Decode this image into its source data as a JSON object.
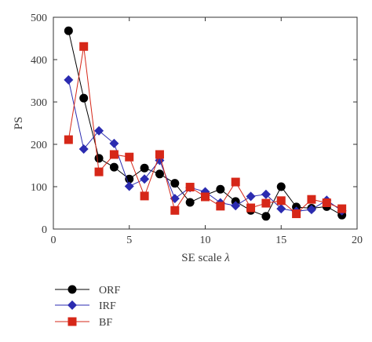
{
  "chart_data": {
    "type": "line",
    "xlabel": "SE scale",
    "xlabel_symbol": "λ",
    "ylabel": "PS",
    "xlim": [
      0,
      20
    ],
    "ylim": [
      0,
      500
    ],
    "xticks": [
      0,
      5,
      10,
      15,
      20
    ],
    "yticks": [
      0,
      100,
      200,
      300,
      400,
      500
    ],
    "grid": false,
    "legend_position": "below",
    "x": [
      1,
      2,
      3,
      4,
      5,
      6,
      7,
      8,
      9,
      10,
      11,
      12,
      13,
      14,
      15,
      16,
      17,
      18,
      19
    ],
    "series": [
      {
        "name": "ORF",
        "color": "#000000",
        "marker": "circle",
        "values": [
          468,
          309,
          167,
          146,
          118,
          144,
          130,
          108,
          63,
          80,
          94,
          65,
          44,
          30,
          100,
          52,
          49,
          53,
          33
        ]
      },
      {
        "name": "IRF",
        "color": "#2b2bb0",
        "marker": "diamond",
        "values": [
          352,
          189,
          232,
          202,
          101,
          118,
          162,
          72,
          98,
          88,
          62,
          55,
          77,
          82,
          48,
          42,
          46,
          68,
          43
        ]
      },
      {
        "name": "BF",
        "color": "#d62718",
        "marker": "square",
        "values": [
          211,
          431,
          135,
          176,
          170,
          78,
          176,
          44,
          99,
          76,
          54,
          111,
          50,
          61,
          67,
          36,
          70,
          62,
          48
        ]
      }
    ]
  }
}
